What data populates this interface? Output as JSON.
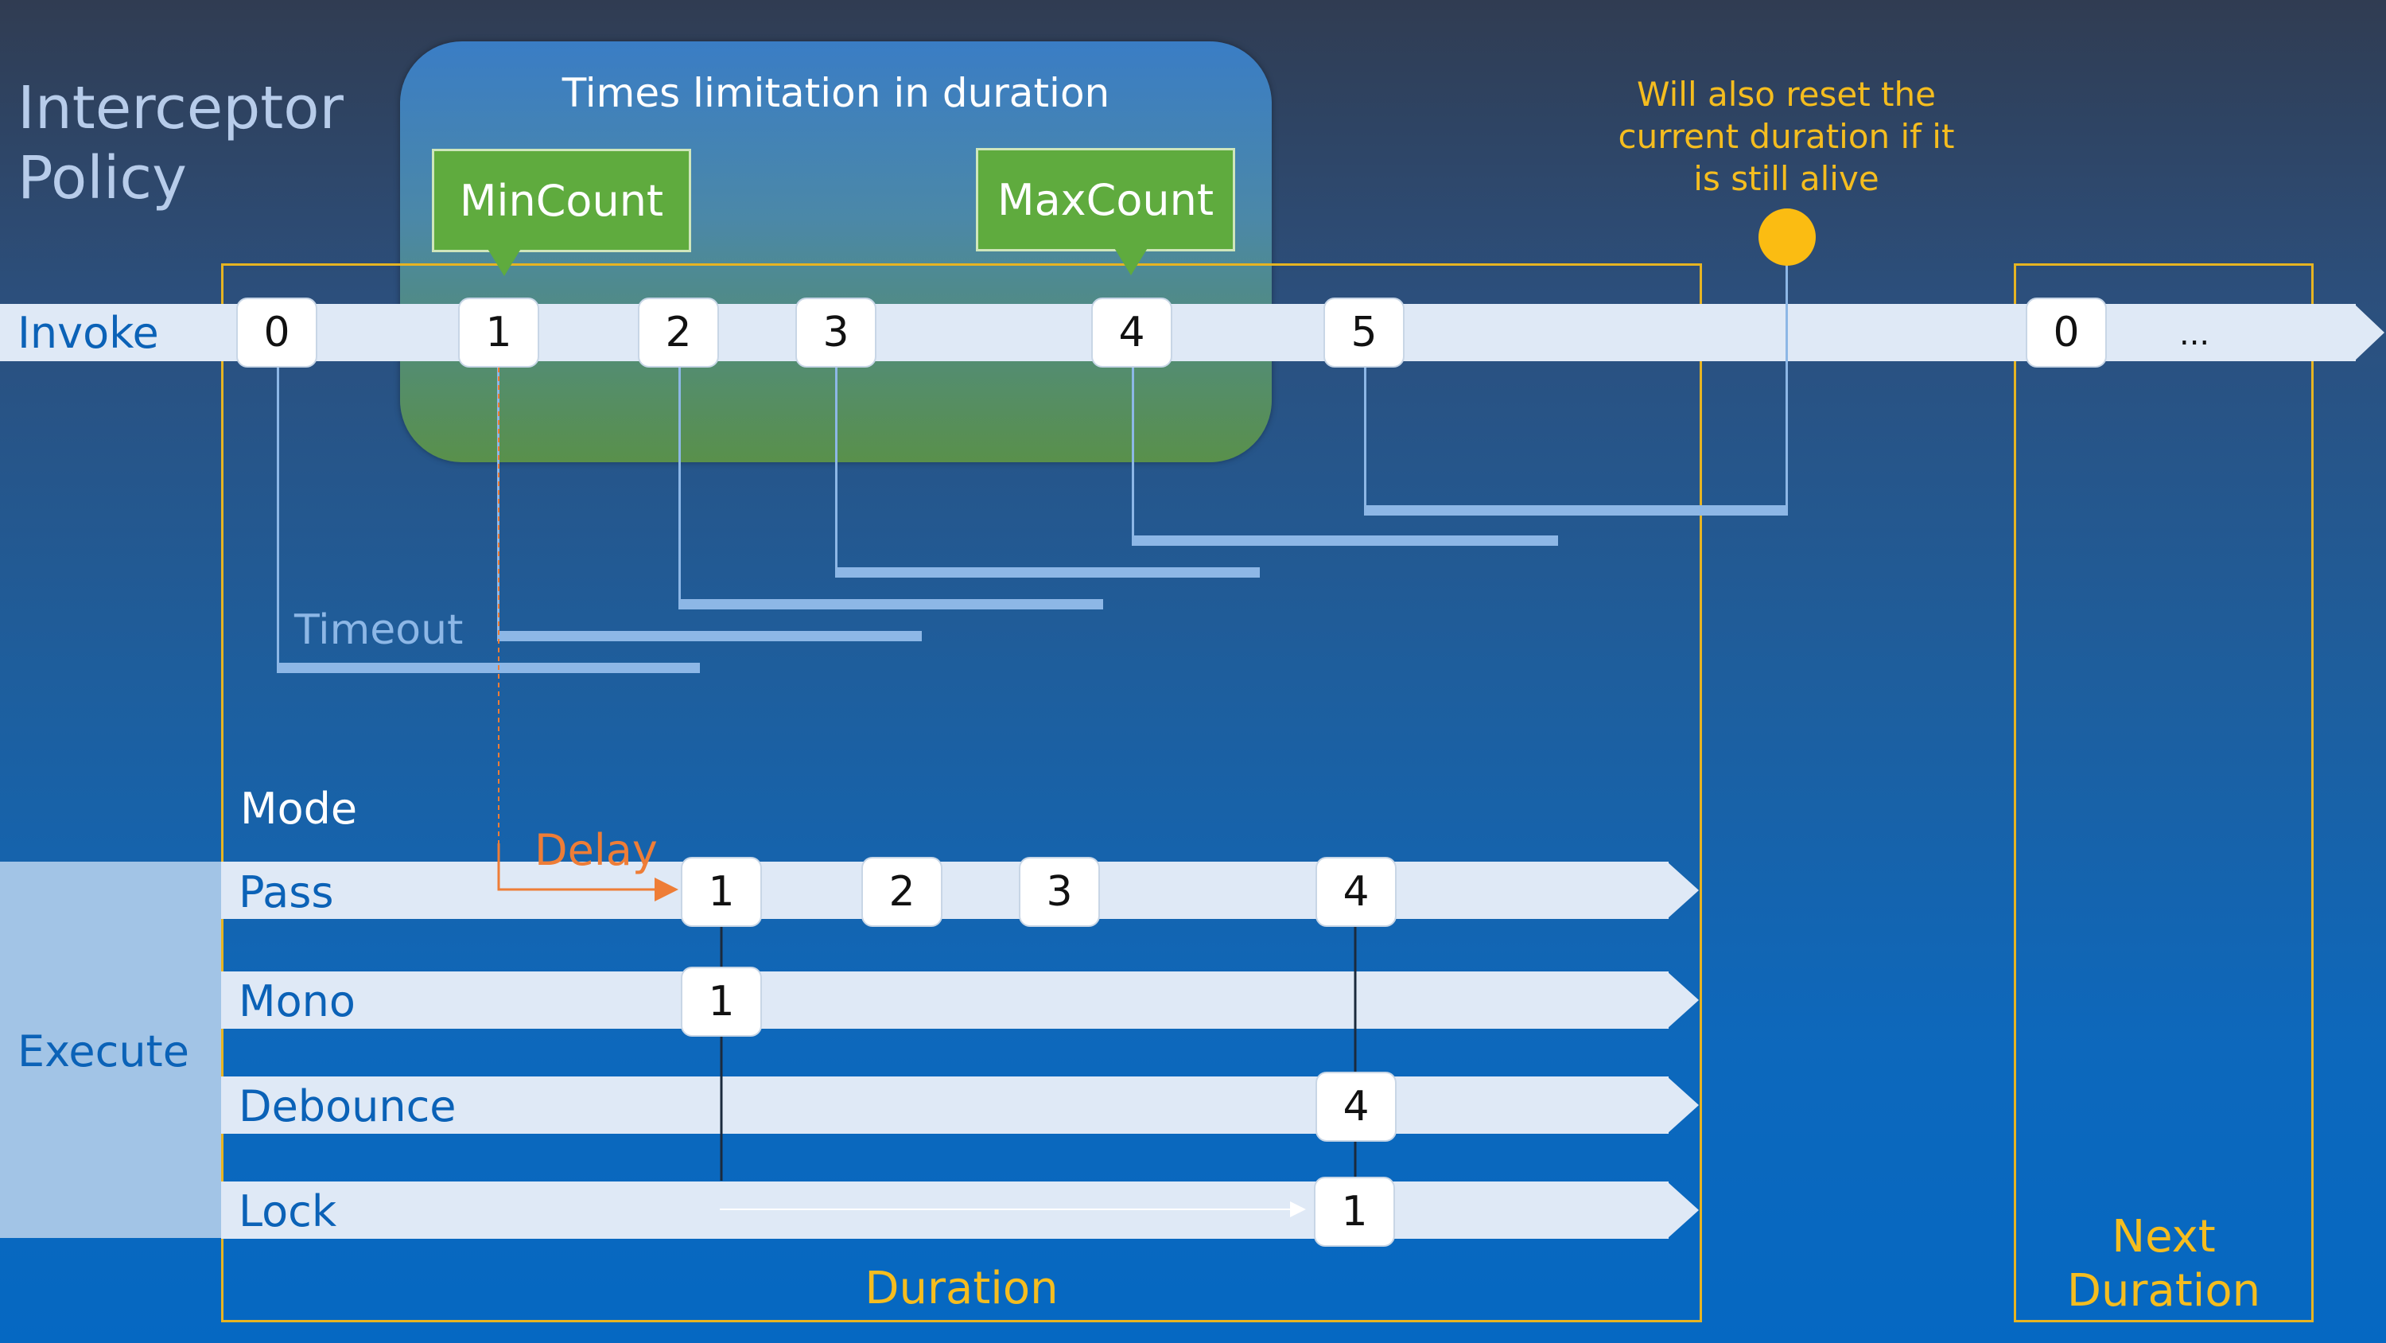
{
  "title": "Interceptor Policy",
  "group": {
    "label": "Times limitation in duration",
    "min_label": "MinCount",
    "max_label": "MaxCount",
    "fill_colors": [
      "#3a7dc5",
      "#59904b"
    ],
    "callout_color": "#5fab3e"
  },
  "annotation": {
    "text": "Will also reset the current duration if it is still alive",
    "color": "#f5bd1f"
  },
  "invoke": {
    "label": "Invoke",
    "nodes": [
      "0",
      "1",
      "2",
      "3",
      "4",
      "5"
    ],
    "next_nodes": [
      "0"
    ],
    "ellipsis": "..."
  },
  "timeout_label": "Timeout",
  "mode_label": "Mode",
  "delay_label": "Delay",
  "execute_label": "Execute",
  "modes": [
    {
      "label": "Pass",
      "nodes": [
        "1",
        "2",
        "3",
        "4"
      ]
    },
    {
      "label": "Mono",
      "nodes": [
        "1"
      ]
    },
    {
      "label": "Debounce",
      "nodes": [
        "4"
      ]
    },
    {
      "label": "Lock",
      "nodes": [
        "1"
      ]
    }
  ],
  "duration_label": "Duration",
  "next_duration_label": "Next Duration",
  "colors": {
    "track": "#dfe9f6",
    "frame": "#e6b422",
    "timeout": "#8db7e6",
    "delay": "#ee7d37",
    "label_blue": "#0b62b7"
  }
}
